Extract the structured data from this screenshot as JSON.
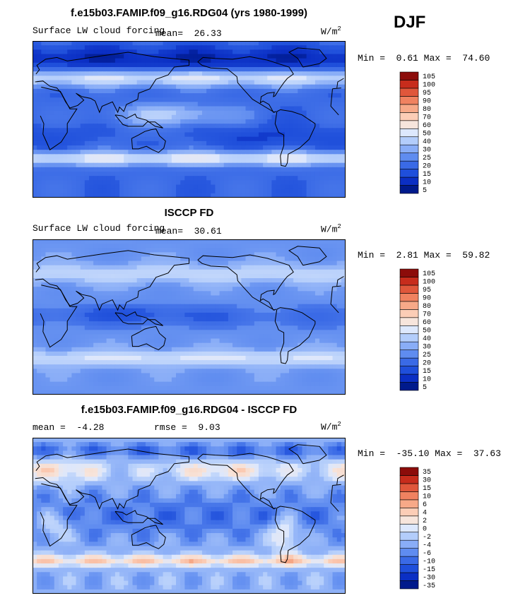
{
  "season": "DJF",
  "colors": {
    "cb11": [
      "#001a8c",
      "#0b2fc4",
      "#1f4fdb",
      "#3a6ae6",
      "#5f8cf0",
      "#89adf7",
      "#b3cdfb",
      "#dde8fd",
      "#f7e5dc",
      "#fccdb6",
      "#f7a988",
      "#f08260",
      "#e0573b",
      "#c72c1c",
      "#8c0c0a"
    ],
    "land": "#000000"
  },
  "chart_data": [
    {
      "type": "heatmap",
      "title": "f.e15b03.FAMIP.f09_g16.RDG04 (yrs 1980-1999)",
      "subtitle": "Surface LW cloud forcing",
      "mean_label": "mean=",
      "mean": "26.33",
      "units_base": "W/m",
      "units_exp": "2",
      "min_label": "Min =",
      "min": "0.61",
      "max_label": "Max =",
      "max": "74.60",
      "colorbar_levels": [
        "5",
        "10",
        "15",
        "20",
        "25",
        "30",
        "40",
        "50",
        "60",
        "70",
        "80",
        "90",
        "95",
        "100",
        "105"
      ],
      "field": "model"
    },
    {
      "type": "heatmap",
      "title": "ISCCP FD",
      "subtitle": "Surface LW cloud forcing",
      "mean_label": "mean=",
      "mean": "30.61",
      "units_base": "W/m",
      "units_exp": "2",
      "min_label": "Min =",
      "min": "2.81",
      "max_label": "Max =",
      "max": "59.82",
      "colorbar_levels": [
        "5",
        "10",
        "15",
        "20",
        "25",
        "30",
        "40",
        "50",
        "60",
        "70",
        "80",
        "90",
        "95",
        "100",
        "105"
      ],
      "field": "obs"
    },
    {
      "type": "heatmap",
      "title": "f.e15b03.FAMIP.f09_g16.RDG04 - ISCCP FD",
      "mean_label": "mean =",
      "mean": "-4.28",
      "rmse_label": "rmse =",
      "rmse": "9.03",
      "units_base": "W/m",
      "units_exp": "2",
      "min_label": "Min =",
      "min": "-35.10",
      "max_label": "Max =",
      "max": "37.63",
      "colorbar_levels": [
        "-35",
        "-30",
        "-15",
        "-10",
        "-6",
        "-4",
        "-2",
        "0",
        "2",
        "4",
        "6",
        "10",
        "15",
        "30",
        "35"
      ],
      "field": "diff"
    }
  ]
}
